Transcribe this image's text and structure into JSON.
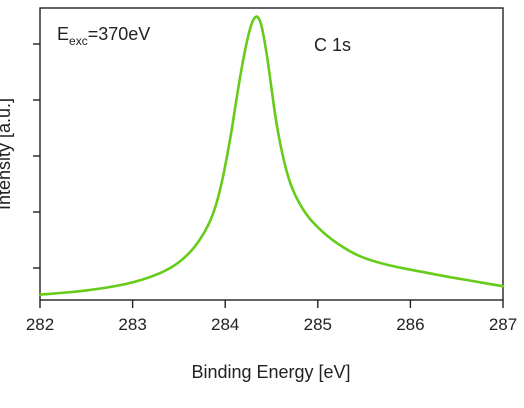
{
  "chart_data": {
    "type": "line",
    "title": "",
    "xlabel": "Binding Energy [eV]",
    "ylabel": "Intensity [a.u.]",
    "xlim": [
      282,
      287
    ],
    "ylim": [
      0,
      1
    ],
    "x_ticks": [
      282,
      283,
      284,
      285,
      286,
      287
    ],
    "y_ticks_visible_labels": false,
    "grid": false,
    "legend": "none",
    "annotations": {
      "excitation_base": "E",
      "excitation_sub": "exc",
      "excitation_value": "=370eV",
      "peak_label": "C 1s"
    },
    "series": [
      {
        "color": "#66cc1a",
        "x": [
          282.0,
          282.2,
          282.4,
          282.6,
          282.8,
          283.0,
          283.2,
          283.4,
          283.55,
          283.7,
          283.85,
          283.95,
          284.05,
          284.12,
          284.18,
          284.24,
          284.29,
          284.33,
          284.36,
          284.39,
          284.42,
          284.46,
          284.5,
          284.55,
          284.62,
          284.7,
          284.8,
          284.9,
          285.0,
          285.1,
          285.2,
          285.35,
          285.5,
          285.7,
          285.9,
          286.1,
          286.3,
          286.5,
          286.7,
          286.85,
          287.0
        ],
        "y": [
          0.005,
          0.01,
          0.016,
          0.024,
          0.034,
          0.048,
          0.068,
          0.097,
          0.132,
          0.185,
          0.27,
          0.38,
          0.55,
          0.7,
          0.82,
          0.92,
          0.98,
          1.0,
          0.995,
          0.97,
          0.92,
          0.84,
          0.74,
          0.62,
          0.5,
          0.4,
          0.33,
          0.28,
          0.245,
          0.215,
          0.19,
          0.158,
          0.135,
          0.115,
          0.1,
          0.088,
          0.075,
          0.063,
          0.052,
          0.043,
          0.035
        ]
      }
    ]
  }
}
